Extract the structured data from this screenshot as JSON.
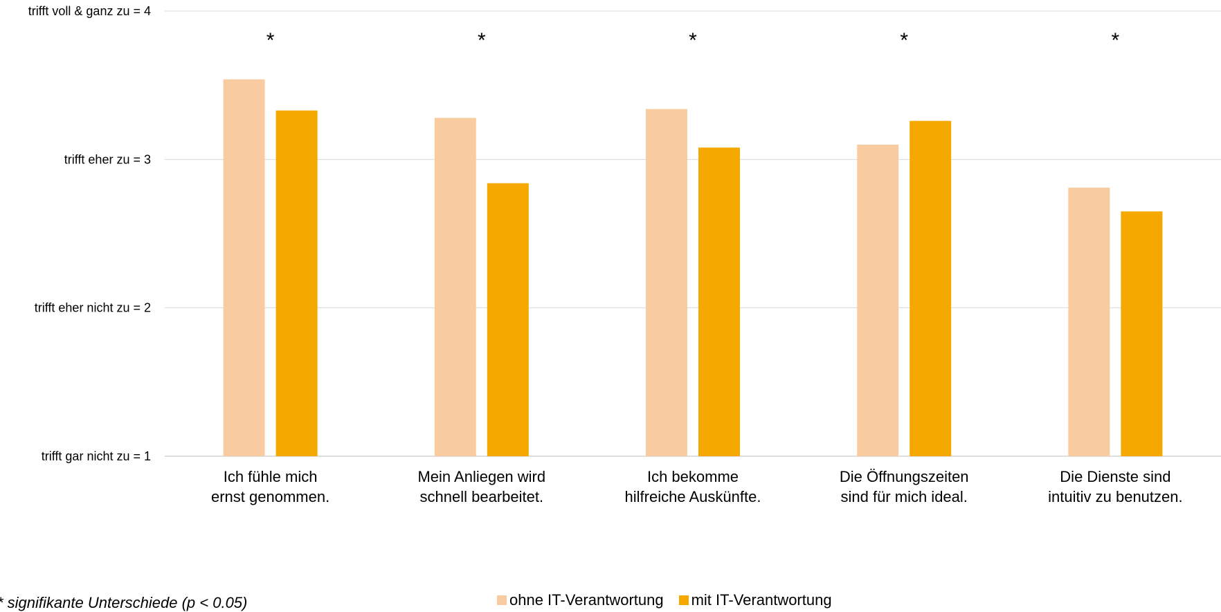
{
  "chart_data": {
    "type": "bar",
    "categories": [
      [
        "Ich fühle mich",
        "ernst genommen."
      ],
      [
        "Mein Anliegen wird",
        "schnell bearbeitet."
      ],
      [
        "Ich bekomme",
        "hilfreiche Auskünfte."
      ],
      [
        "Die Öffnungszeiten",
        "sind für mich ideal."
      ],
      [
        "Die Dienste sind",
        "intuitiv zu benutzen."
      ]
    ],
    "series": [
      {
        "name": "ohne IT-Verantwortung",
        "color": "#F8CCA0",
        "values": [
          3.54,
          3.28,
          3.34,
          3.1,
          2.81
        ]
      },
      {
        "name": "mit IT-Verantwortung",
        "color": "#F5A800",
        "values": [
          3.33,
          2.84,
          3.08,
          3.26,
          2.65
        ]
      }
    ],
    "ylim": [
      1,
      4
    ],
    "yticks": [
      {
        "value": 4,
        "label": "trifft voll & ganz zu = 4"
      },
      {
        "value": 3,
        "label": "trifft eher zu = 3"
      },
      {
        "value": 2,
        "label": "trifft eher nicht zu = 2"
      },
      {
        "value": 1,
        "label": "trifft gar nicht zu = 1"
      }
    ],
    "significance_markers": [
      "*",
      "*",
      "*",
      "*",
      "*"
    ],
    "grid": true,
    "legend_position": "bottom",
    "footnote": "* signifikante Unterschiede (p < 0.05)"
  }
}
